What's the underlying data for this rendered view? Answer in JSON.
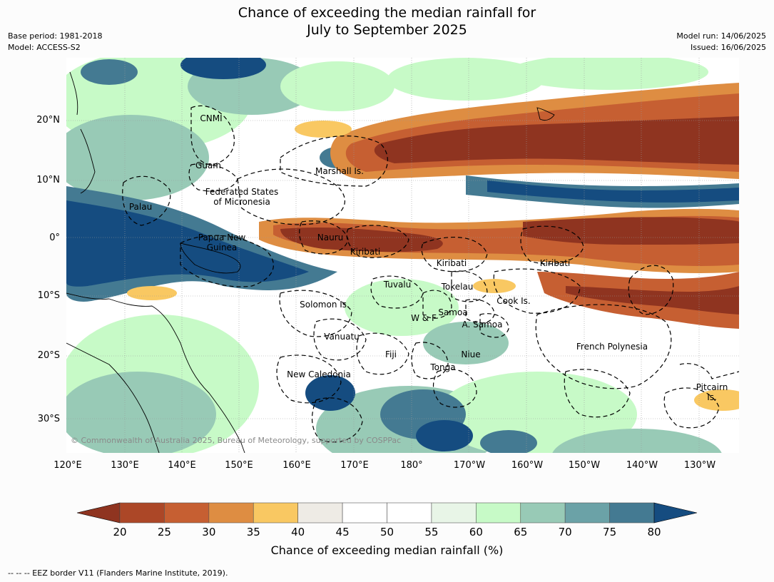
{
  "title": {
    "line1": "Chance of exceeding the median rainfall for",
    "line2": "July to September 2025"
  },
  "meta_left": {
    "base_period": "Base period: 1981-2018",
    "model": "Model: ACCESS-S2"
  },
  "meta_right": {
    "model_run": "Model run: 14/06/2025",
    "issued": "Issued: 16/06/2025"
  },
  "map": {
    "lat_labels": [
      "20°N",
      "10°N",
      "0°",
      "10°S",
      "20°S",
      "30°S"
    ],
    "lon_labels": [
      "120°E",
      "130°E",
      "140°E",
      "150°E",
      "160°E",
      "170°E",
      "180°",
      "170°W",
      "160°W",
      "150°W",
      "140°W",
      "130°W"
    ],
    "places": [
      "CNMI",
      "Guam",
      "Marshall Is.",
      "Federated States\nof Micronesia",
      "Palau",
      "Papua New\nGuinea",
      "Nauru",
      "Kiribati",
      "Kiribati",
      "Kiribati",
      "Tuvalu",
      "Tokelau",
      "Solomon Is.",
      "Samoa",
      "W & F",
      "A. Samoa",
      "Cook Is.",
      "Vanuatu",
      "Fiji",
      "Niue",
      "French Polynesia",
      "Tonga",
      "New Caledonia",
      "Pitcairn\nIs."
    ],
    "copyright": "© Commonwealth of Australia 2025, Bureau of Meteorology, supported by COSPPac"
  },
  "colorbar": {
    "colors": [
      "#8f3420",
      "#ac4727",
      "#c65f32",
      "#de8d42",
      "#f9c862",
      "#eeebe5",
      "#ffffff",
      "#ffffff",
      "#e8f5e7",
      "#c7fac7",
      "#98cab6",
      "#6ba2a7",
      "#447a92",
      "#154c80"
    ],
    "ticks": [
      "20",
      "25",
      "30",
      "35",
      "40",
      "45",
      "50",
      "55",
      "60",
      "65",
      "70",
      "75",
      "80"
    ],
    "label": "Chance of exceeding median rainfall (%)"
  },
  "footer": "--  --  -- EEZ border V11 (Flanders Marine Institute, 2019)."
}
